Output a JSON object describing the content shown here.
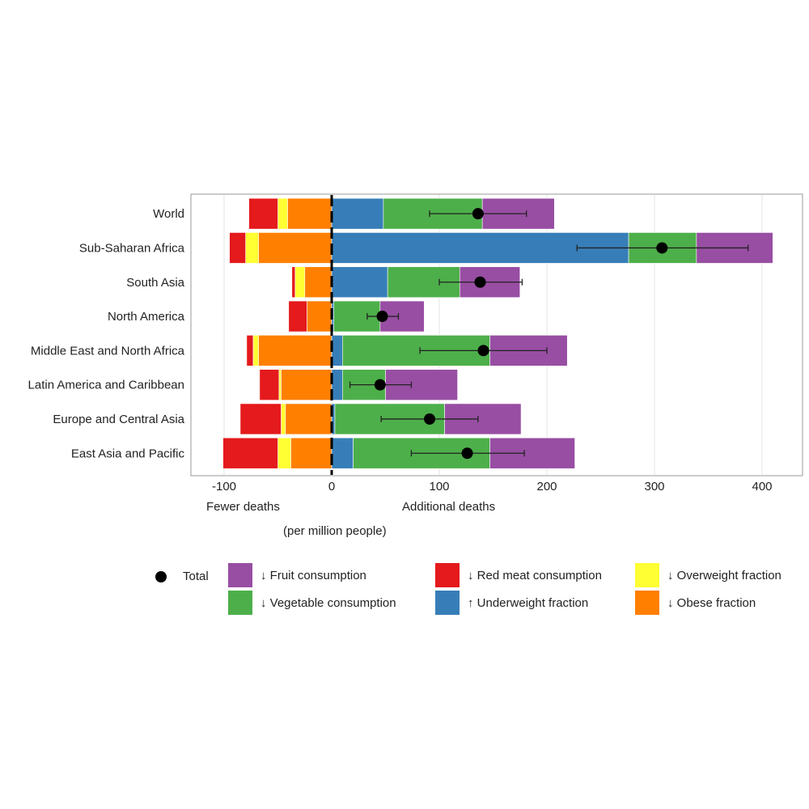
{
  "chart_data": {
    "type": "bar",
    "orientation": "horizontal-stacked-diverging",
    "title": "",
    "xlabel": "(per million people)",
    "xlabel_left": "Fewer deaths",
    "xlabel_right": "Additional deaths",
    "xlim": [
      -130,
      435
    ],
    "xticks": [
      -100,
      0,
      100,
      200,
      300,
      400
    ],
    "xtick_labels": [
      "-100",
      "0",
      "100",
      "200",
      "300",
      "400"
    ],
    "grid": true,
    "legend_position": "bottom",
    "categories": [
      "World",
      "Sub-Saharan Africa",
      "South Asia",
      "North America",
      "Middle East and North Africa",
      "Latin America and Caribbean",
      "Europe and Central Asia",
      "East Asia and Pacific"
    ],
    "series": [
      {
        "key": "obese",
        "name": "↓ Obese fraction",
        "color": "#FF7F00",
        "side": "negative",
        "values": [
          -41,
          -68,
          -25,
          -23,
          -68,
          -47,
          -43,
          -38
        ]
      },
      {
        "key": "overweight",
        "name": "↓ Overweight fraction",
        "color": "#FFFF33",
        "side": "negative",
        "values": [
          -9,
          -12,
          -9,
          0,
          -5,
          -2,
          -4,
          -12
        ]
      },
      {
        "key": "redmeat",
        "name": "↓ Red meat consumption",
        "color": "#E41A1C",
        "side": "negative",
        "values": [
          -27,
          -15,
          -3,
          -17,
          -6,
          -18,
          -38,
          -51
        ]
      },
      {
        "key": "underweight",
        "name": "↑ Underweight fraction",
        "color": "#377EB8",
        "side": "positive",
        "values": [
          48,
          276,
          52,
          2,
          10,
          10,
          3,
          20
        ]
      },
      {
        "key": "vegetable",
        "name": "↓ Vegetable consumption",
        "color": "#4DAF4A",
        "side": "positive",
        "values": [
          92,
          63,
          67,
          43,
          137,
          40,
          102,
          127
        ]
      },
      {
        "key": "fruit",
        "name": "↓ Fruit consumption",
        "color": "#984EA3",
        "side": "positive",
        "values": [
          67,
          71,
          56,
          41,
          72,
          67,
          71,
          79
        ]
      }
    ],
    "total": {
      "name": "Total",
      "values": [
        136,
        307,
        138,
        47,
        141,
        45,
        91,
        126
      ],
      "ci_low": [
        91,
        228,
        100,
        33,
        82,
        17,
        46,
        74
      ],
      "ci_high": [
        181,
        387,
        177,
        62,
        200,
        74,
        136,
        179
      ]
    }
  },
  "legend": {
    "total": "Total",
    "fruit": "↓ Fruit consumption",
    "vegetable": "↓ Vegetable consumption",
    "redmeat": "↓ Red meat consumption",
    "underweight": "↑ Underweight fraction",
    "overweight": "↓ Overweight fraction",
    "obese": "↓ Obese fraction"
  },
  "colors": {
    "fruit": "#984EA3",
    "vegetable": "#4DAF4A",
    "redmeat": "#E41A1C",
    "underweight": "#377EB8",
    "overweight": "#FFFF33",
    "obese": "#FF7F00"
  }
}
